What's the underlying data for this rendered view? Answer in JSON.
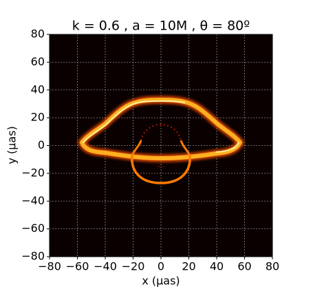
{
  "chart_data": {
    "type": "image",
    "title": "k = 0.6 , a = 10M ,  θ = 80º",
    "xlabel": "x (μas)",
    "ylabel": "y (μas)",
    "xlim": [
      -80,
      80
    ],
    "ylim": [
      -80,
      80
    ],
    "xticks": [
      {
        "value": -80,
        "label": "−80"
      },
      {
        "value": -60,
        "label": "−60"
      },
      {
        "value": -40,
        "label": "−40"
      },
      {
        "value": -20,
        "label": "−20"
      },
      0,
      20,
      40,
      60,
      80
    ],
    "yticks": [
      {
        "value": -80,
        "label": "−80"
      },
      {
        "value": -60,
        "label": "−60"
      },
      {
        "value": -40,
        "label": "−40"
      },
      {
        "value": -20,
        "label": "−20"
      },
      0,
      20,
      40,
      60,
      80
    ],
    "grid": true
  }
}
